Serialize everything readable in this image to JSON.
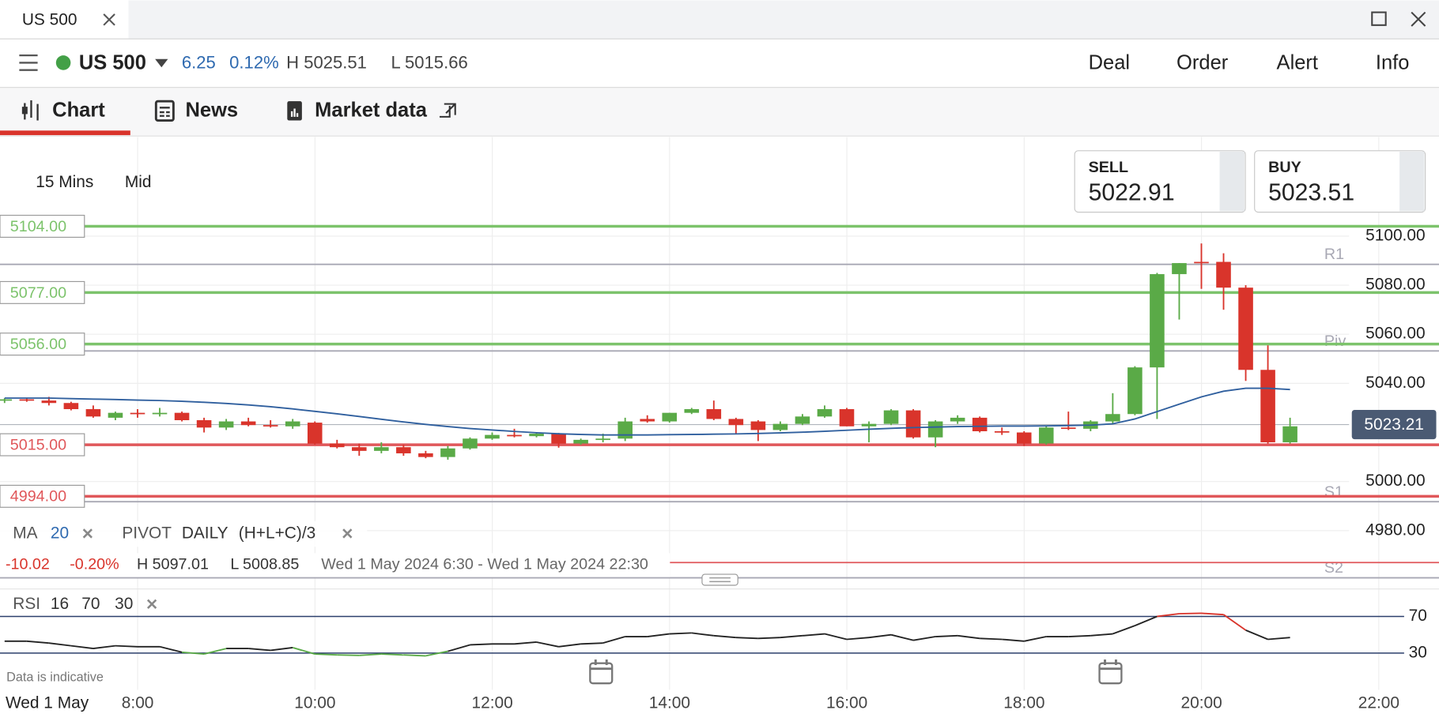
{
  "window": {
    "tab": "US 500"
  },
  "toolbar": {
    "market": "US 500",
    "change": "6.25",
    "change_pct": "0.12%",
    "high": "H 5025.51",
    "low": "L 5015.66",
    "actions": [
      "Deal",
      "Order",
      "Alert",
      "Info"
    ]
  },
  "tabs": [
    "Chart",
    "News",
    "Market data"
  ],
  "chart_controls": {
    "interval": "15 Mins",
    "price_type": "Mid"
  },
  "quote": {
    "sell_label": "SELL",
    "sell": "5022.91",
    "buy_label": "BUY",
    "buy": "5023.51"
  },
  "chart_data": {
    "type": "candlestick",
    "ylim": [
      4957,
      5140
    ],
    "yticks": [
      {
        "value": 5100,
        "label": "5100.00"
      },
      {
        "value": 5080,
        "label": "5080.00"
      },
      {
        "value": 5060,
        "label": "5060.00"
      },
      {
        "value": 5040,
        "label": "5040.00"
      },
      {
        "value": 5000,
        "label": "5000.00"
      },
      {
        "value": 4980,
        "label": "4980.00"
      }
    ],
    "x_labels": [
      "8:00",
      "10:00",
      "12:00",
      "14:00",
      "16:00",
      "18:00",
      "20:00",
      "22:00"
    ],
    "date_label": "Wed 1 May",
    "up_color": "#5aaa47",
    "down_color": "#d9342b",
    "open": [
      5033,
      5033.5,
      5033,
      5032,
      5029.5,
      5026,
      5028,
      5027.5,
      5028,
      5025,
      5022,
      5024.5,
      5023,
      5022.5,
      5024,
      5015.5,
      5014,
      5012.5,
      5014,
      5011.5,
      5010,
      5013.5,
      5017.5,
      5019,
      5018.5,
      5019.5,
      5015.5,
      5017,
      5017.5,
      5025.5,
      5024.5,
      5028,
      5029.5,
      5025.5,
      5024.5,
      5021,
      5023.5,
      5026.5,
      5029.5,
      5022.5,
      5023.5,
      5029,
      5018,
      5024.5,
      5026,
      5020.5,
      5020,
      5015.5,
      5022,
      5021.5,
      5024.5,
      5027.5,
      5046.5,
      5084.5,
      5089.5,
      5089.5,
      5079,
      5045.5,
      5016
    ],
    "high": [
      5034,
      5034,
      5034.5,
      5032.5,
      5031,
      5028.5,
      5029.5,
      5030,
      5028.5,
      5026,
      5025.5,
      5026,
      5025,
      5025.5,
      5024.5,
      5017,
      5015.5,
      5016,
      5015,
      5012.5,
      5014.5,
      5018,
      5020,
      5021.5,
      5020,
      5019.8,
      5017.5,
      5019.5,
      5026,
      5027,
      5028,
      5030,
      5033,
      5026,
      5025,
      5024.5,
      5027.5,
      5031,
      5030,
      5024.5,
      5029.5,
      5029.5,
      5025,
      5027,
      5026.5,
      5022,
      5020.5,
      5022.5,
      5028.5,
      5025,
      5036,
      5047,
      5085,
      5089,
      5097,
      5093,
      5080,
      5055.5,
      5026
    ],
    "low": [
      5032,
      5032.5,
      5031,
      5029,
      5026,
      5025,
      5026,
      5026.5,
      5024.5,
      5020,
      5021,
      5022.5,
      5022,
      5021.5,
      5015,
      5013.5,
      5010.5,
      5011.5,
      5010.5,
      5009.5,
      5008.9,
      5013,
      5017,
      5018,
      5018,
      5013.8,
      5015,
      5016,
      5016.5,
      5024,
      5024,
      5027.5,
      5025,
      5019.5,
      5016.5,
      5020.5,
      5023,
      5026,
      5022.5,
      5016,
      5023,
      5017.5,
      5014,
      5023.5,
      5020,
      5019,
      5014.5,
      5015,
      5021,
      5020.5,
      5023.5,
      5027,
      5025.5,
      5066,
      5078.5,
      5070,
      5041,
      5015.5,
      5015.5
    ],
    "close": [
      5033.5,
      5033,
      5032,
      5029.5,
      5026.5,
      5028,
      5027.5,
      5028,
      5025,
      5022,
      5024.5,
      5023,
      5022.5,
      5024.5,
      5015.5,
      5014,
      5012.5,
      5014,
      5011.5,
      5010,
      5013.5,
      5017.5,
      5019,
      5018.5,
      5019.5,
      5015.5,
      5017,
      5017.5,
      5024.5,
      5024.5,
      5028,
      5029.5,
      5025.5,
      5023,
      5021,
      5023.5,
      5026.5,
      5029.5,
      5022.5,
      5023.5,
      5029,
      5018,
      5024.5,
      5026,
      5020.5,
      5020,
      5015.5,
      5022,
      5021.5,
      5024.5,
      5027.5,
      5046.5,
      5084.5,
      5089,
      5089,
      5079,
      5045.5,
      5016,
      5022.5
    ],
    "ma": {
      "label": "MA",
      "period": "20",
      "color": "#2f5f9e",
      "values": [
        5034,
        5034,
        5034,
        5033.8,
        5033.6,
        5033.4,
        5033.2,
        5033,
        5032.7,
        5032.3,
        5031.8,
        5031.2,
        5030.5,
        5029.6,
        5028.6,
        5027.6,
        5026.5,
        5025.4,
        5024.3,
        5023.3,
        5022.4,
        5021.6,
        5021,
        5020.4,
        5019.9,
        5019.5,
        5019.2,
        5019,
        5019,
        5019,
        5019.1,
        5019.2,
        5019.3,
        5019.4,
        5019.6,
        5019.8,
        5020.1,
        5020.5,
        5020.9,
        5021.3,
        5021.7,
        5022,
        5022.2,
        5022.4,
        5022.5,
        5022.6,
        5022.6,
        5022.7,
        5022.8,
        5023,
        5023.5,
        5025.5,
        5028.5,
        5031.5,
        5034.5,
        5036.8,
        5038,
        5038,
        5037.5
      ]
    },
    "levels": [
      {
        "value": 5104,
        "label": "5104.00",
        "color": "#7cc36b"
      },
      {
        "value": 5077,
        "label": "5077.00",
        "color": "#7cc36b"
      },
      {
        "value": 5056,
        "label": "5056.00",
        "color": "#7cc36b"
      },
      {
        "value": 5015,
        "label": "5015.00",
        "color": "#e0575a"
      },
      {
        "value": 4994,
        "label": "4994.00",
        "color": "#e0575a"
      },
      {
        "value": 4967,
        "color": "#e0575a"
      }
    ],
    "pivot": {
      "label": "PIVOT",
      "period": "DAILY",
      "formula": "(H+L+C)/3",
      "color": "#a8a8b4",
      "lines": [
        {
          "name": "R1",
          "value": 5088.5
        },
        {
          "name": "Piv",
          "value": 5053.2
        },
        {
          "name": "S1",
          "value": 4991.8
        },
        {
          "name": "S2",
          "value": 4960.8
        }
      ]
    },
    "last_price": {
      "value": 5023.21,
      "label": "5023.21"
    }
  },
  "stats": {
    "change": "-10.02",
    "change_pct": "-0.20%",
    "high": "H 5097.01",
    "low": "L 5008.85",
    "range": "Wed 1 May 2024 6:30 - Wed 1 May 2024 22:30"
  },
  "rsi": {
    "label": "RSI",
    "period": "16",
    "upper": "70",
    "lower": "30",
    "ylim": [
      -3,
      97
    ],
    "yticks": [
      70,
      30
    ],
    "values": [
      43,
      43,
      41,
      38,
      35,
      38,
      37,
      37,
      31,
      29,
      35,
      35,
      33,
      36,
      29,
      28,
      27.5,
      29,
      28,
      27,
      32,
      39,
      40,
      40,
      42,
      37,
      40,
      41,
      48,
      48,
      51,
      52,
      49,
      47,
      46,
      47,
      49,
      51,
      45,
      47,
      50,
      44,
      48,
      49,
      46,
      45,
      43,
      48,
      48,
      49,
      51,
      60,
      70,
      73,
      73.5,
      72,
      55,
      45,
      47
    ]
  },
  "footnote": "Data is indicative"
}
